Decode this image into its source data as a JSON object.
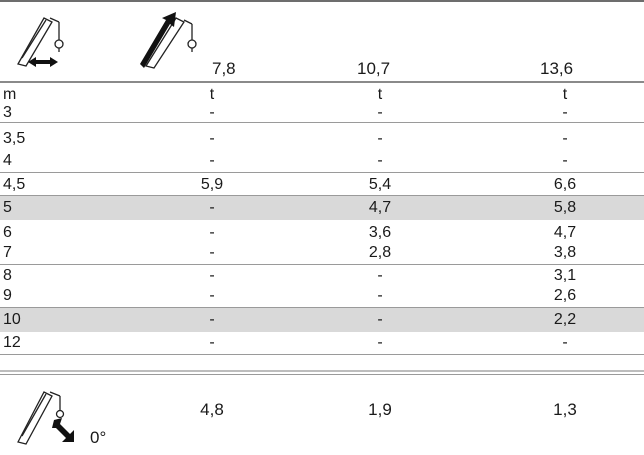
{
  "header": {
    "boom_lengths": [
      "7,8",
      "10,7",
      "13,6"
    ]
  },
  "units": {
    "radius": "m",
    "load": "t"
  },
  "rows": [
    {
      "radius": "3",
      "values": [
        "-",
        "-",
        "-"
      ],
      "shaded": false
    },
    {
      "radius": "3,5",
      "values": [
        "-",
        "-",
        "-"
      ],
      "shaded": false
    },
    {
      "radius": "4",
      "values": [
        "-",
        "-",
        "-"
      ],
      "shaded": false
    },
    {
      "radius": "4,5",
      "values": [
        "5,9",
        "5,4",
        "6,6"
      ],
      "shaded": false
    },
    {
      "radius": "5",
      "values": [
        "-",
        "4,7",
        "5,8"
      ],
      "shaded": true
    },
    {
      "radius": "6",
      "values": [
        "-",
        "3,6",
        "4,7"
      ],
      "shaded": false
    },
    {
      "radius": "7",
      "values": [
        "-",
        "2,8",
        "3,8"
      ],
      "shaded": false
    },
    {
      "radius": "8",
      "values": [
        "-",
        "-",
        "3,1"
      ],
      "shaded": false
    },
    {
      "radius": "9",
      "values": [
        "-",
        "-",
        "2,6"
      ],
      "shaded": false
    },
    {
      "radius": "10",
      "values": [
        "-",
        "-",
        "2,2"
      ],
      "shaded": true
    },
    {
      "radius": "12",
      "values": [
        "-",
        "-",
        "-"
      ],
      "shaded": false
    }
  ],
  "footer": {
    "angle_label": "0°",
    "values": [
      "4,8",
      "1,9",
      "1,3"
    ]
  },
  "icons": {
    "radius_icon": "crane-boom-radius-icon",
    "telescope_icon": "crane-boom-telescope-icon",
    "slewing_icon": "crane-boom-slewing-icon"
  }
}
